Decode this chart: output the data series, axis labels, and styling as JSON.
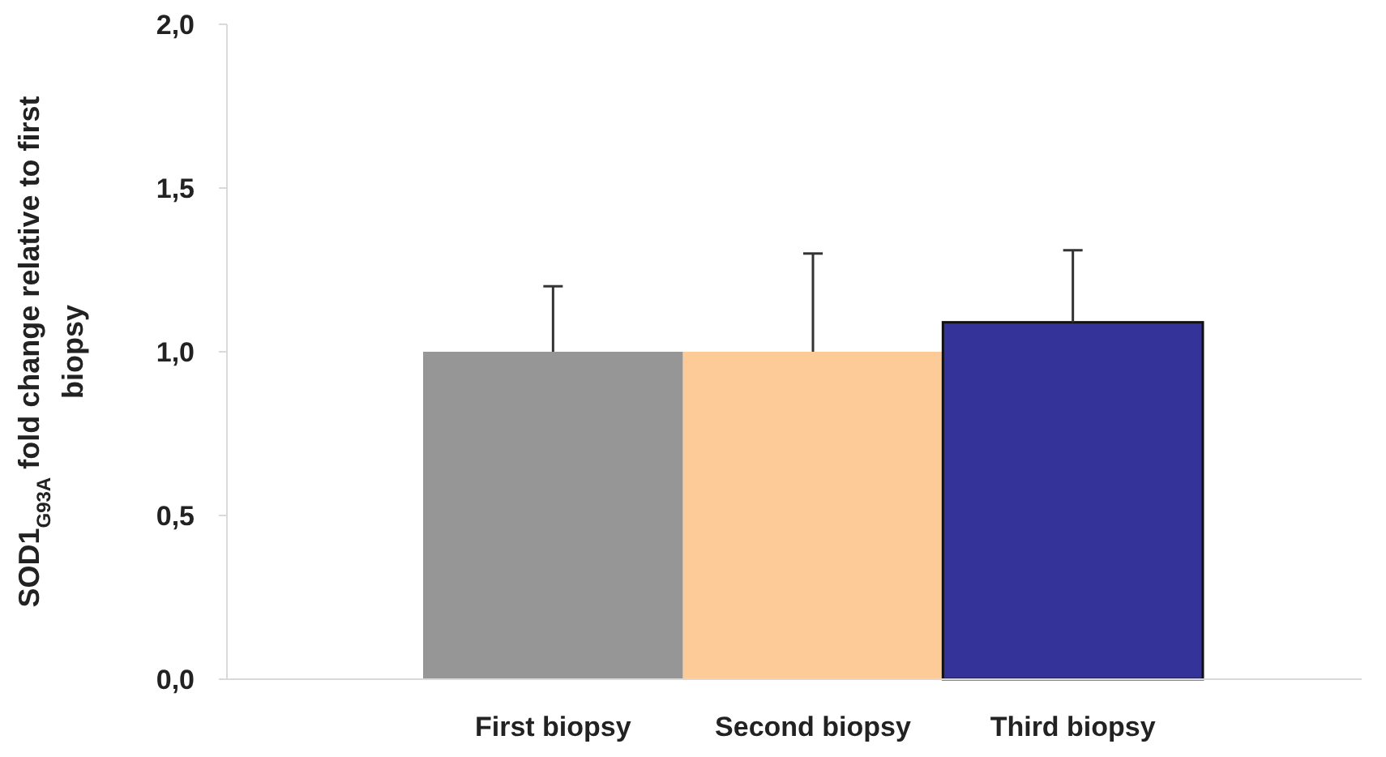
{
  "chart_data": {
    "type": "bar",
    "ylabel": "SOD1$_{G93A}$ fold change relative to first biopsy",
    "categories": [
      "First biopsy",
      "Second biopsy",
      "Third biopsy"
    ],
    "values": [
      1.0,
      1.0,
      1.09
    ],
    "colors": [
      "#969696",
      "#fccb98",
      "#333399"
    ],
    "errors": [
      0.2,
      0.3,
      0.22
    ],
    "ylim": [
      0,
      2
    ],
    "yticks": [
      {
        "value": 0,
        "label": "0,0"
      },
      {
        "value": 0.5,
        "label": "0,5"
      },
      {
        "value": 1,
        "label": "1,0"
      },
      {
        "value": 1.5,
        "label": "1,5"
      },
      {
        "value": 2,
        "label": "2,0"
      }
    ],
    "grid": false
  }
}
